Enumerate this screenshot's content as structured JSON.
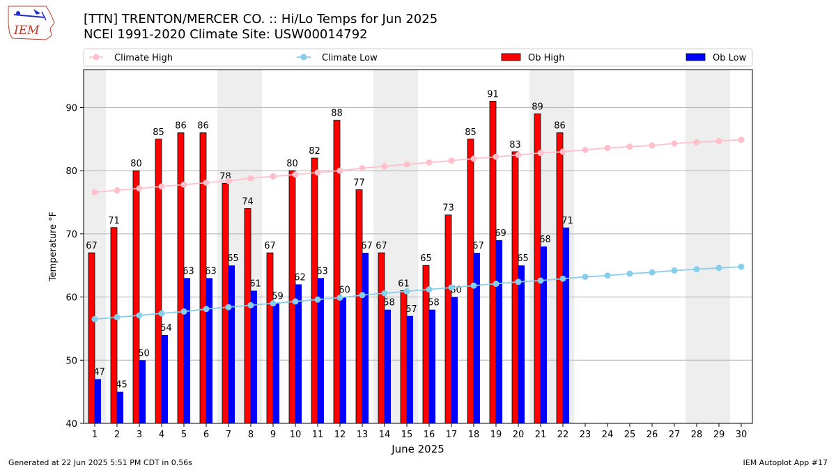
{
  "logo": {
    "text": "IEM"
  },
  "title_line1": "[TTN] TRENTON/MERCER CO. :: Hi/Lo Temps for Jun 2025",
  "title_line2": "NCEI 1991-2020 Climate Site: USW00014792",
  "footer_left": "Generated at 22 Jun 2025 5:51 PM CDT in 0.56s",
  "footer_right": "IEM Autoplot App #17",
  "colors": {
    "ob_high": "#ff0000",
    "ob_low": "#0000ff",
    "climate_high": "#ffc0cb",
    "climate_low": "#87ceeb",
    "weekend_band": "#eeeeee",
    "grid": "#b0b0b0"
  },
  "chart_data": {
    "type": "bar",
    "xlabel": "June 2025",
    "ylabel": "Temperature °F",
    "ylim": [
      40,
      96
    ],
    "yticks": [
      40,
      50,
      60,
      70,
      80,
      90
    ],
    "grid": "y",
    "legend": [
      "Climate High",
      "Climate Low",
      "Ob High",
      "Ob Low"
    ],
    "legend_placement": "top",
    "days": [
      1,
      2,
      3,
      4,
      5,
      6,
      7,
      8,
      9,
      10,
      11,
      12,
      13,
      14,
      15,
      16,
      17,
      18,
      19,
      20,
      21,
      22,
      23,
      24,
      25,
      26,
      27,
      28,
      29,
      30
    ],
    "weekend_days": [
      1,
      7,
      8,
      14,
      15,
      21,
      22,
      28,
      29
    ],
    "series": [
      {
        "name": "Ob High",
        "kind": "bar",
        "values": [
          67,
          71,
          80,
          85,
          86,
          86,
          78,
          74,
          67,
          80,
          82,
          88,
          77,
          67,
          61,
          65,
          73,
          85,
          91,
          83,
          89,
          86
        ]
      },
      {
        "name": "Ob Low",
        "kind": "bar",
        "values": [
          47,
          45,
          50,
          54,
          63,
          63,
          65,
          61,
          59,
          62,
          63,
          60,
          67,
          58,
          57,
          58,
          60,
          67,
          69,
          65,
          68,
          71
        ]
      },
      {
        "name": "Climate High",
        "kind": "line",
        "values": [
          76.6,
          76.9,
          77.2,
          77.5,
          77.8,
          78.1,
          78.4,
          78.8,
          79.1,
          79.4,
          79.7,
          80.0,
          80.4,
          80.7,
          81.0,
          81.3,
          81.6,
          81.9,
          82.2,
          82.5,
          82.8,
          83.0,
          83.3,
          83.6,
          83.8,
          84.0,
          84.3,
          84.5,
          84.7,
          84.9
        ]
      },
      {
        "name": "Climate Low",
        "kind": "line",
        "values": [
          56.5,
          56.8,
          57.1,
          57.4,
          57.7,
          58.1,
          58.4,
          58.7,
          59.0,
          59.3,
          59.6,
          59.9,
          60.3,
          60.6,
          60.9,
          61.2,
          61.5,
          61.8,
          62.1,
          62.4,
          62.6,
          62.9,
          63.2,
          63.4,
          63.7,
          63.9,
          64.2,
          64.4,
          64.6,
          64.8
        ]
      }
    ]
  }
}
